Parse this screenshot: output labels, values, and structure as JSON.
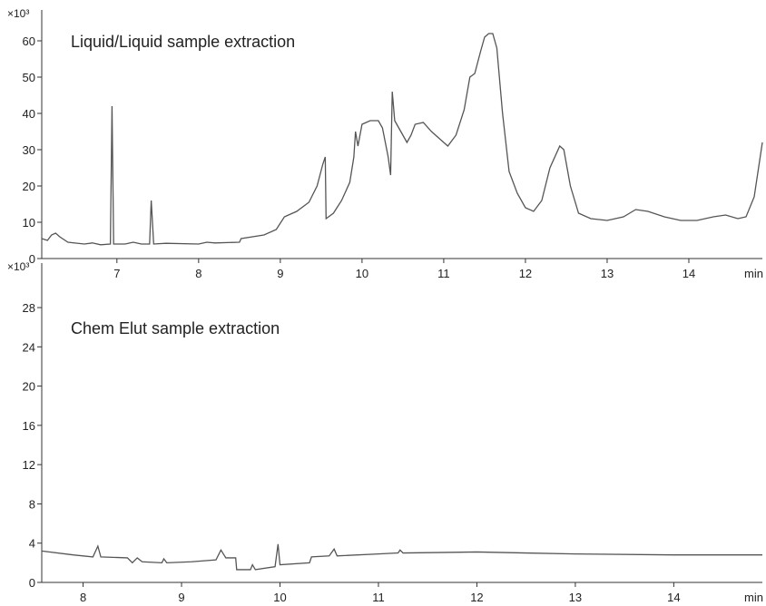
{
  "chart_data": [
    {
      "type": "line",
      "title": "Liquid/Liquid sample extraction",
      "ylabel": "×10³",
      "xlabel": "min",
      "x": [
        6.08,
        6.15,
        6.2,
        6.25,
        6.3,
        6.4,
        6.6,
        6.7,
        6.8,
        6.92,
        6.94,
        6.96,
        7.1,
        7.2,
        7.3,
        7.4,
        7.42,
        7.45,
        7.6,
        8.0,
        8.1,
        8.2,
        8.5,
        8.52,
        8.8,
        8.95,
        9.05,
        9.2,
        9.35,
        9.45,
        9.52,
        9.55,
        9.56,
        9.65,
        9.75,
        9.85,
        9.9,
        9.92,
        9.95,
        10.0,
        10.1,
        10.2,
        10.25,
        10.32,
        10.35,
        10.37,
        10.4,
        10.45,
        10.5,
        10.55,
        10.6,
        10.65,
        10.75,
        10.85,
        10.95,
        11.05,
        11.15,
        11.25,
        11.32,
        11.38,
        11.45,
        11.5,
        11.55,
        11.6,
        11.65,
        11.72,
        11.8,
        11.9,
        12.0,
        12.1,
        12.2,
        12.3,
        12.42,
        12.47,
        12.55,
        12.65,
        12.8,
        13.0,
        13.2,
        13.35,
        13.5,
        13.7,
        13.9,
        14.1,
        14.3,
        14.45,
        14.6,
        14.7,
        14.8,
        14.9
      ],
      "series": [
        {
          "color": "#555555",
          "values": [
            5.5,
            5,
            6.5,
            7,
            6,
            4.5,
            4,
            4.3,
            3.8,
            4,
            42,
            4,
            4,
            4.5,
            4,
            4,
            16,
            4,
            4.2,
            4,
            4.5,
            4.3,
            4.5,
            5.5,
            6.5,
            8,
            11.5,
            13,
            15.5,
            20,
            26,
            28,
            11,
            12.5,
            16,
            21,
            28,
            35,
            31,
            37,
            38,
            38,
            36,
            28,
            23,
            46,
            38,
            36,
            34,
            32,
            34,
            37,
            37.5,
            35,
            33,
            31,
            34,
            41,
            50,
            51,
            57,
            61,
            62,
            62,
            58,
            40,
            24,
            18,
            14,
            13,
            16,
            25,
            31,
            30,
            20,
            12.5,
            11,
            10.5,
            11.5,
            13.5,
            13,
            11.5,
            10.5,
            10.5,
            11.5,
            12,
            11,
            11.5,
            17,
            32
          ]
        }
      ],
      "xlim": [
        6.08,
        14.9
      ],
      "ylim": [
        0,
        63
      ],
      "xticks": [
        7,
        8,
        9,
        10,
        11,
        12,
        13,
        14
      ],
      "yticks": [
        0,
        10,
        20,
        30,
        40,
        50,
        60
      ]
    },
    {
      "type": "line",
      "title": "Chem Elut sample extraction",
      "ylabel": "×10³",
      "xlabel": "min",
      "x": [
        7.58,
        7.9,
        8.1,
        8.15,
        8.18,
        8.45,
        8.5,
        8.55,
        8.6,
        8.8,
        8.82,
        8.85,
        9.1,
        9.35,
        9.4,
        9.45,
        9.55,
        9.56,
        9.7,
        9.72,
        9.75,
        9.95,
        9.98,
        10.0,
        10.3,
        10.32,
        10.5,
        10.55,
        10.58,
        11.0,
        11.2,
        11.22,
        11.25,
        12.0,
        12.5,
        13.0,
        14.0,
        14.9
      ],
      "series": [
        {
          "color": "#555555",
          "values": [
            3.2,
            2.8,
            2.6,
            3.7,
            2.6,
            2.5,
            2.0,
            2.5,
            2.1,
            2.0,
            2.4,
            2.0,
            2.1,
            2.3,
            3.3,
            2.5,
            2.5,
            1.3,
            1.3,
            1.8,
            1.3,
            1.6,
            3.9,
            1.8,
            2.0,
            2.6,
            2.7,
            3.4,
            2.7,
            2.9,
            3.0,
            3.3,
            3.0,
            3.1,
            3.0,
            2.9,
            2.8,
            2.8
          ]
        }
      ],
      "xlim": [
        7.58,
        14.9
      ],
      "ylim": [
        0,
        30.5
      ],
      "xticks": [
        8,
        9,
        10,
        11,
        12,
        13,
        14
      ],
      "yticks": [
        0,
        4,
        8,
        12,
        16,
        20,
        24,
        28
      ]
    }
  ]
}
